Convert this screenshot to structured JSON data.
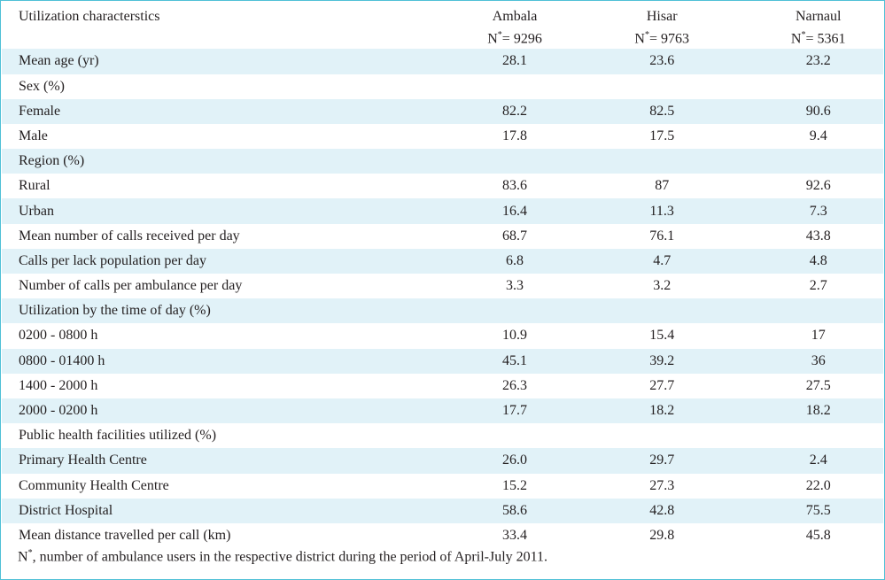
{
  "header": {
    "col0": "Utilization characterstics",
    "cols": [
      {
        "name": "Ambala",
        "n_label": "N",
        "n_sup": "*",
        "n_value": "= 9296"
      },
      {
        "name": "Hisar",
        "n_label": "N",
        "n_sup": "*",
        "n_value": "= 9763"
      },
      {
        "name": "Narnaul",
        "n_label": "N",
        "n_sup": "*",
        "n_value": "= 5361"
      }
    ]
  },
  "rows": [
    {
      "label": "Mean age (yr)",
      "v": [
        "28.1",
        "23.6",
        "23.2"
      ]
    },
    {
      "label": "Sex (%)",
      "v": [
        "",
        "",
        ""
      ]
    },
    {
      "label": "Female",
      "v": [
        "82.2",
        "82.5",
        "90.6"
      ]
    },
    {
      "label": "Male",
      "v": [
        "17.8",
        "17.5",
        "9.4"
      ]
    },
    {
      "label": "Region (%)",
      "v": [
        "",
        "",
        ""
      ]
    },
    {
      "label": "Rural",
      "v": [
        "83.6",
        "87",
        "92.6"
      ]
    },
    {
      "label": "Urban",
      "v": [
        "16.4",
        "11.3",
        "7.3"
      ]
    },
    {
      "label": "Mean number of calls received per day",
      "v": [
        "68.7",
        "76.1",
        "43.8"
      ]
    },
    {
      "label": "Calls per lack population per day",
      "v": [
        "6.8",
        "4.7",
        "4.8"
      ]
    },
    {
      "label": "Number of calls per ambulance per day",
      "v": [
        "3.3",
        "3.2",
        "2.7"
      ]
    },
    {
      "label": "Utilization by the time of day (%)",
      "v": [
        "",
        "",
        ""
      ]
    },
    {
      "label": "0200 - 0800 h",
      "v": [
        "10.9",
        "15.4",
        "17"
      ]
    },
    {
      "label": "0800 - 01400 h",
      "v": [
        "45.1",
        "39.2",
        "36"
      ]
    },
    {
      "label": "1400 - 2000 h",
      "v": [
        "26.3",
        "27.7",
        "27.5"
      ]
    },
    {
      "label": "2000 - 0200 h",
      "v": [
        "17.7",
        "18.2",
        "18.2"
      ]
    },
    {
      "label": "Public health facilities utilized (%)",
      "v": [
        "",
        "",
        ""
      ]
    },
    {
      "label": "Primary Health Centre",
      "v": [
        "26.0",
        "29.7",
        "2.4"
      ]
    },
    {
      "label": "Community Health Centre",
      "v": [
        "15.2",
        "27.3",
        "22.0"
      ]
    },
    {
      "label": "District Hospital",
      "v": [
        "58.6",
        "42.8",
        "75.5"
      ]
    },
    {
      "label": "Mean distance travelled per call (km)",
      "v": [
        "33.4",
        "29.8",
        "45.8"
      ]
    }
  ],
  "footnote": {
    "mark": "N",
    "sup": "*",
    "text": ", number of ambulance users in the respective district during the period of April-July 2011."
  }
}
